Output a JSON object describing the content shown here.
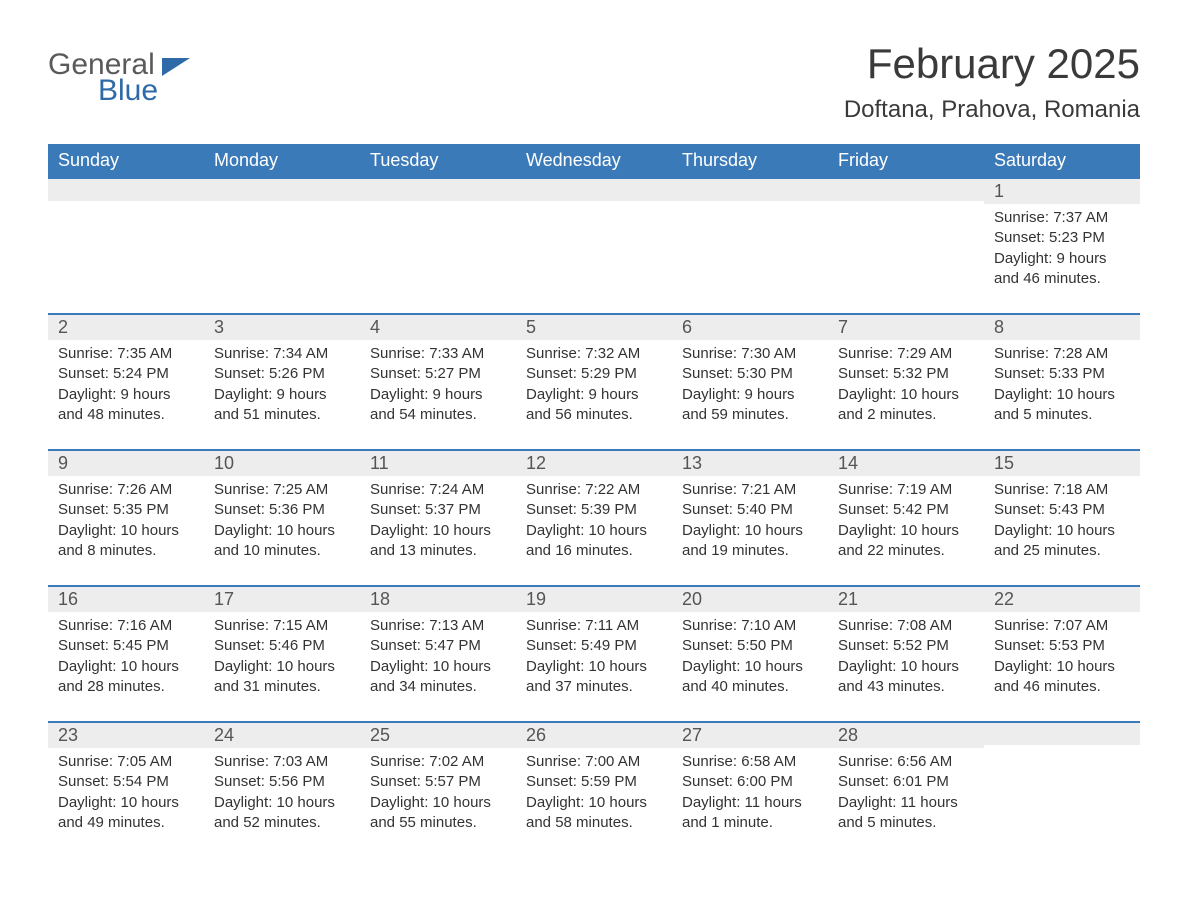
{
  "logo": {
    "word1": "General",
    "word2": "Blue"
  },
  "title": "February 2025",
  "location": "Doftana, Prahova, Romania",
  "colors": {
    "header_bg": "#3b7ab8",
    "header_text": "#ffffff",
    "daynum_bg": "#ededed",
    "row_border": "#3b7ab8",
    "title_text": "#3a3a3a",
    "body_text": "#333333",
    "page_bg": "#ffffff"
  },
  "fonts": {
    "month_title_pt": 42,
    "location_pt": 24,
    "dow_pt": 18,
    "daynum_pt": 18,
    "info_pt": 15
  },
  "daysOfWeek": [
    "Sunday",
    "Monday",
    "Tuesday",
    "Wednesday",
    "Thursday",
    "Friday",
    "Saturday"
  ],
  "weeks": [
    [
      {
        "n": "",
        "sunrise": "",
        "sunset": "",
        "daylight": ""
      },
      {
        "n": "",
        "sunrise": "",
        "sunset": "",
        "daylight": ""
      },
      {
        "n": "",
        "sunrise": "",
        "sunset": "",
        "daylight": ""
      },
      {
        "n": "",
        "sunrise": "",
        "sunset": "",
        "daylight": ""
      },
      {
        "n": "",
        "sunrise": "",
        "sunset": "",
        "daylight": ""
      },
      {
        "n": "",
        "sunrise": "",
        "sunset": "",
        "daylight": ""
      },
      {
        "n": "1",
        "sunrise": "Sunrise: 7:37 AM",
        "sunset": "Sunset: 5:23 PM",
        "daylight": "Daylight: 9 hours and 46 minutes."
      }
    ],
    [
      {
        "n": "2",
        "sunrise": "Sunrise: 7:35 AM",
        "sunset": "Sunset: 5:24 PM",
        "daylight": "Daylight: 9 hours and 48 minutes."
      },
      {
        "n": "3",
        "sunrise": "Sunrise: 7:34 AM",
        "sunset": "Sunset: 5:26 PM",
        "daylight": "Daylight: 9 hours and 51 minutes."
      },
      {
        "n": "4",
        "sunrise": "Sunrise: 7:33 AM",
        "sunset": "Sunset: 5:27 PM",
        "daylight": "Daylight: 9 hours and 54 minutes."
      },
      {
        "n": "5",
        "sunrise": "Sunrise: 7:32 AM",
        "sunset": "Sunset: 5:29 PM",
        "daylight": "Daylight: 9 hours and 56 minutes."
      },
      {
        "n": "6",
        "sunrise": "Sunrise: 7:30 AM",
        "sunset": "Sunset: 5:30 PM",
        "daylight": "Daylight: 9 hours and 59 minutes."
      },
      {
        "n": "7",
        "sunrise": "Sunrise: 7:29 AM",
        "sunset": "Sunset: 5:32 PM",
        "daylight": "Daylight: 10 hours and 2 minutes."
      },
      {
        "n": "8",
        "sunrise": "Sunrise: 7:28 AM",
        "sunset": "Sunset: 5:33 PM",
        "daylight": "Daylight: 10 hours and 5 minutes."
      }
    ],
    [
      {
        "n": "9",
        "sunrise": "Sunrise: 7:26 AM",
        "sunset": "Sunset: 5:35 PM",
        "daylight": "Daylight: 10 hours and 8 minutes."
      },
      {
        "n": "10",
        "sunrise": "Sunrise: 7:25 AM",
        "sunset": "Sunset: 5:36 PM",
        "daylight": "Daylight: 10 hours and 10 minutes."
      },
      {
        "n": "11",
        "sunrise": "Sunrise: 7:24 AM",
        "sunset": "Sunset: 5:37 PM",
        "daylight": "Daylight: 10 hours and 13 minutes."
      },
      {
        "n": "12",
        "sunrise": "Sunrise: 7:22 AM",
        "sunset": "Sunset: 5:39 PM",
        "daylight": "Daylight: 10 hours and 16 minutes."
      },
      {
        "n": "13",
        "sunrise": "Sunrise: 7:21 AM",
        "sunset": "Sunset: 5:40 PM",
        "daylight": "Daylight: 10 hours and 19 minutes."
      },
      {
        "n": "14",
        "sunrise": "Sunrise: 7:19 AM",
        "sunset": "Sunset: 5:42 PM",
        "daylight": "Daylight: 10 hours and 22 minutes."
      },
      {
        "n": "15",
        "sunrise": "Sunrise: 7:18 AM",
        "sunset": "Sunset: 5:43 PM",
        "daylight": "Daylight: 10 hours and 25 minutes."
      }
    ],
    [
      {
        "n": "16",
        "sunrise": "Sunrise: 7:16 AM",
        "sunset": "Sunset: 5:45 PM",
        "daylight": "Daylight: 10 hours and 28 minutes."
      },
      {
        "n": "17",
        "sunrise": "Sunrise: 7:15 AM",
        "sunset": "Sunset: 5:46 PM",
        "daylight": "Daylight: 10 hours and 31 minutes."
      },
      {
        "n": "18",
        "sunrise": "Sunrise: 7:13 AM",
        "sunset": "Sunset: 5:47 PM",
        "daylight": "Daylight: 10 hours and 34 minutes."
      },
      {
        "n": "19",
        "sunrise": "Sunrise: 7:11 AM",
        "sunset": "Sunset: 5:49 PM",
        "daylight": "Daylight: 10 hours and 37 minutes."
      },
      {
        "n": "20",
        "sunrise": "Sunrise: 7:10 AM",
        "sunset": "Sunset: 5:50 PM",
        "daylight": "Daylight: 10 hours and 40 minutes."
      },
      {
        "n": "21",
        "sunrise": "Sunrise: 7:08 AM",
        "sunset": "Sunset: 5:52 PM",
        "daylight": "Daylight: 10 hours and 43 minutes."
      },
      {
        "n": "22",
        "sunrise": "Sunrise: 7:07 AM",
        "sunset": "Sunset: 5:53 PM",
        "daylight": "Daylight: 10 hours and 46 minutes."
      }
    ],
    [
      {
        "n": "23",
        "sunrise": "Sunrise: 7:05 AM",
        "sunset": "Sunset: 5:54 PM",
        "daylight": "Daylight: 10 hours and 49 minutes."
      },
      {
        "n": "24",
        "sunrise": "Sunrise: 7:03 AM",
        "sunset": "Sunset: 5:56 PM",
        "daylight": "Daylight: 10 hours and 52 minutes."
      },
      {
        "n": "25",
        "sunrise": "Sunrise: 7:02 AM",
        "sunset": "Sunset: 5:57 PM",
        "daylight": "Daylight: 10 hours and 55 minutes."
      },
      {
        "n": "26",
        "sunrise": "Sunrise: 7:00 AM",
        "sunset": "Sunset: 5:59 PM",
        "daylight": "Daylight: 10 hours and 58 minutes."
      },
      {
        "n": "27",
        "sunrise": "Sunrise: 6:58 AM",
        "sunset": "Sunset: 6:00 PM",
        "daylight": "Daylight: 11 hours and 1 minute."
      },
      {
        "n": "28",
        "sunrise": "Sunrise: 6:56 AM",
        "sunset": "Sunset: 6:01 PM",
        "daylight": "Daylight: 11 hours and 5 minutes."
      },
      {
        "n": "",
        "sunrise": "",
        "sunset": "",
        "daylight": ""
      }
    ]
  ]
}
